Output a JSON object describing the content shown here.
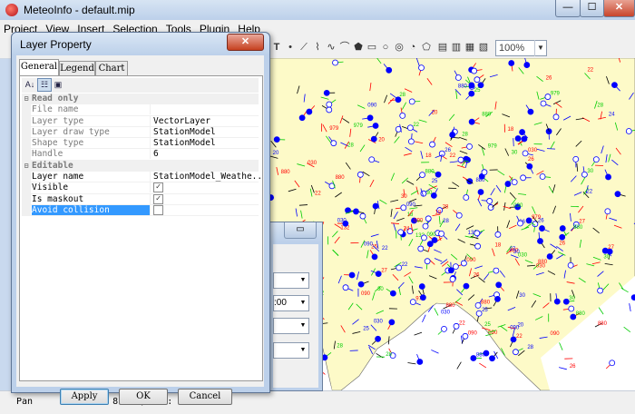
{
  "window": {
    "title": "MeteoInfo - default.mip",
    "min": "—",
    "max": "☐",
    "close": "✕"
  },
  "menu": [
    "Project",
    "View",
    "Insert",
    "Selection",
    "Tools",
    "Plugin",
    "Help"
  ],
  "toolbar": {
    "zoom_value": "100%"
  },
  "status": {
    "mode": "Pan",
    "coords": "Lon: 81.61, Lat: 43.18"
  },
  "dialog": {
    "title": "Layer Property",
    "close": "✕",
    "tabs": [
      "General",
      "Legend",
      "Chart"
    ],
    "categories": {
      "read_only": "Read only",
      "editable": "Editable"
    },
    "read_only_props": [
      {
        "name": "File name",
        "value": ""
      },
      {
        "name": "Layer type",
        "value": "VectorLayer"
      },
      {
        "name": "Layer draw type",
        "value": "StationModel"
      },
      {
        "name": "Shape type",
        "value": "StationModel"
      },
      {
        "name": "Handle",
        "value": "6"
      }
    ],
    "editable_props": [
      {
        "name": "Layer name",
        "value": "StationModel_Weathe..."
      },
      {
        "name": "Visible",
        "checked": true
      },
      {
        "name": "Is maskout",
        "checked": true
      },
      {
        "name": "Avoid collision",
        "checked": false
      }
    ],
    "buttons": {
      "apply": "Apply",
      "ok": "OK",
      "cancel": "Cancel"
    }
  },
  "bg_dialog": {
    "combo_value": ":00"
  },
  "map": {
    "land_color": "#fdfac8",
    "sea_color": "#ffffff",
    "station_colors": [
      "#0000ff",
      "#ff0000",
      "#00cc00",
      "#000000"
    ],
    "labels": [
      "132",
      "030",
      "979",
      "090",
      "880",
      "27",
      "26",
      "24",
      "25",
      "30",
      "28",
      "18",
      "20",
      "22"
    ]
  }
}
